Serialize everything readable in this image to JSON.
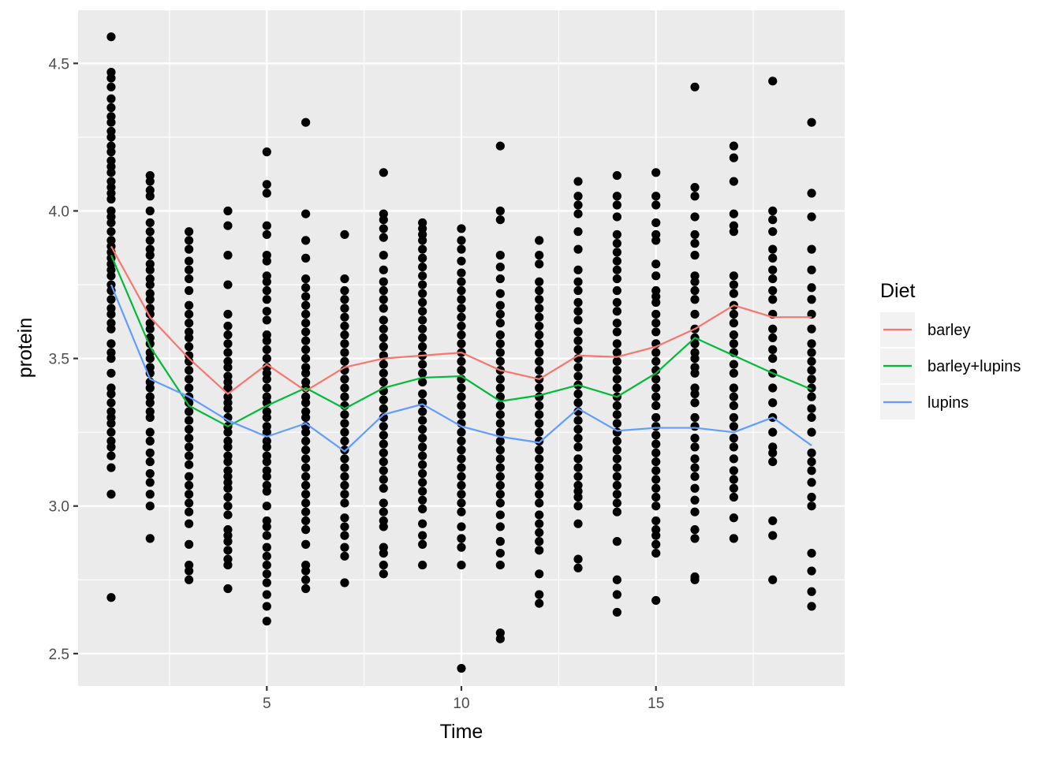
{
  "chart_data": {
    "type": "scatter",
    "title": "",
    "xlabel": "Time",
    "ylabel": "protein",
    "xlim": [
      0.15,
      19.85
    ],
    "ylim": [
      2.39,
      4.68
    ],
    "x_ticks": [
      5,
      10,
      15
    ],
    "y_ticks": [
      2.5,
      3.0,
      3.5,
      4.0,
      4.5
    ],
    "y_tick_labels": [
      "2.5",
      "3.0",
      "3.5",
      "4.0",
      "4.5"
    ],
    "grid": true,
    "background": "#ebebeb",
    "point_color": "#000000",
    "legend": {
      "title": "Diet",
      "position": "right",
      "entries": [
        "barley",
        "barley+lupins",
        "lupins"
      ]
    },
    "series": [
      {
        "name": "barley",
        "color": "#f8766d",
        "x": [
          1,
          2,
          3,
          4,
          5,
          6,
          7,
          8,
          9,
          10,
          11,
          12,
          13,
          14,
          15,
          16,
          17,
          18,
          19
        ],
        "values": [
          3.88,
          3.64,
          3.5,
          3.38,
          3.48,
          3.39,
          3.47,
          3.5,
          3.51,
          3.52,
          3.46,
          3.43,
          3.51,
          3.505,
          3.54,
          3.6,
          3.68,
          3.64,
          3.64
        ]
      },
      {
        "name": "barley+lupins",
        "color": "#00ba38",
        "x": [
          1,
          2,
          3,
          4,
          5,
          6,
          7,
          8,
          9,
          10,
          11,
          12,
          13,
          14,
          15,
          16,
          17,
          18,
          19
        ],
        "values": [
          3.85,
          3.54,
          3.34,
          3.27,
          3.34,
          3.4,
          3.33,
          3.4,
          3.435,
          3.44,
          3.355,
          3.375,
          3.41,
          3.37,
          3.45,
          3.57,
          3.51,
          3.45,
          3.395
        ]
      },
      {
        "name": "lupins",
        "color": "#619cff",
        "x": [
          1,
          2,
          3,
          4,
          5,
          6,
          7,
          8,
          9,
          10,
          11,
          12,
          13,
          14,
          15,
          16,
          17,
          18,
          19
        ],
        "values": [
          3.75,
          3.43,
          3.37,
          3.29,
          3.235,
          3.28,
          3.185,
          3.31,
          3.345,
          3.27,
          3.235,
          3.215,
          3.33,
          3.255,
          3.265,
          3.265,
          3.25,
          3.3,
          3.205
        ]
      }
    ],
    "points": [
      {
        "x": 1,
        "y": [
          4.59,
          4.47,
          4.45,
          4.42,
          4.38,
          4.35,
          4.32,
          4.3,
          4.27,
          4.25,
          4.22,
          4.2,
          4.17,
          4.15,
          4.13,
          4.1,
          4.08,
          4.06,
          4.04,
          4.0,
          3.98,
          3.96,
          3.93,
          3.9,
          3.88,
          3.86,
          3.84,
          3.82,
          3.8,
          3.78,
          3.75,
          3.73,
          3.7,
          3.67,
          3.65,
          3.62,
          3.6,
          3.55,
          3.52,
          3.5,
          3.45,
          3.4,
          3.38,
          3.35,
          3.32,
          3.3,
          3.28,
          3.25,
          3.22,
          3.2,
          3.17,
          3.13,
          3.04,
          2.69
        ]
      },
      {
        "x": 2,
        "y": [
          4.12,
          4.1,
          4.07,
          4.05,
          4.0,
          3.96,
          3.93,
          3.9,
          3.87,
          3.85,
          3.82,
          3.8,
          3.77,
          3.75,
          3.72,
          3.7,
          3.67,
          3.65,
          3.62,
          3.6,
          3.57,
          3.55,
          3.52,
          3.5,
          3.47,
          3.45,
          3.42,
          3.4,
          3.37,
          3.35,
          3.32,
          3.3,
          3.25,
          3.22,
          3.18,
          3.15,
          3.11,
          3.08,
          3.04,
          3.0,
          2.89
        ]
      },
      {
        "x": 3,
        "y": [
          3.93,
          3.9,
          3.87,
          3.83,
          3.8,
          3.77,
          3.73,
          3.68,
          3.65,
          3.62,
          3.59,
          3.57,
          3.54,
          3.51,
          3.49,
          3.46,
          3.43,
          3.4,
          3.37,
          3.35,
          3.32,
          3.29,
          3.26,
          3.23,
          3.2,
          3.17,
          3.14,
          3.1,
          3.07,
          3.04,
          3.01,
          2.98,
          2.94,
          2.87,
          2.8,
          2.78,
          2.75
        ]
      },
      {
        "x": 4,
        "y": [
          4.0,
          3.95,
          3.85,
          3.75,
          3.65,
          3.61,
          3.58,
          3.55,
          3.52,
          3.49,
          3.47,
          3.44,
          3.42,
          3.4,
          3.37,
          3.35,
          3.33,
          3.3,
          3.27,
          3.25,
          3.22,
          3.2,
          3.17,
          3.15,
          3.12,
          3.1,
          3.08,
          3.06,
          3.03,
          3.0,
          2.97,
          2.92,
          2.9,
          2.88,
          2.85,
          2.82,
          2.8,
          2.72
        ]
      },
      {
        "x": 5,
        "y": [
          4.2,
          4.09,
          4.06,
          3.95,
          3.92,
          3.85,
          3.83,
          3.78,
          3.76,
          3.73,
          3.7,
          3.66,
          3.63,
          3.58,
          3.56,
          3.53,
          3.5,
          3.47,
          3.45,
          3.43,
          3.4,
          3.37,
          3.35,
          3.32,
          3.3,
          3.27,
          3.25,
          3.22,
          3.2,
          3.17,
          3.15,
          3.12,
          3.1,
          3.07,
          3.05,
          3.0,
          2.95,
          2.93,
          2.9,
          2.86,
          2.83,
          2.8,
          2.77,
          2.74,
          2.7,
          2.66,
          2.61
        ]
      },
      {
        "x": 6,
        "y": [
          4.3,
          3.99,
          3.9,
          3.84,
          3.77,
          3.74,
          3.71,
          3.68,
          3.65,
          3.62,
          3.59,
          3.56,
          3.53,
          3.5,
          3.47,
          3.45,
          3.42,
          3.4,
          3.37,
          3.35,
          3.32,
          3.3,
          3.27,
          3.25,
          3.22,
          3.19,
          3.16,
          3.13,
          3.1,
          3.07,
          3.04,
          3.01,
          2.98,
          2.95,
          2.92,
          2.87,
          2.8,
          2.78,
          2.75,
          2.72
        ]
      },
      {
        "x": 7,
        "y": [
          3.92,
          3.77,
          3.73,
          3.7,
          3.67,
          3.64,
          3.61,
          3.58,
          3.55,
          3.52,
          3.49,
          3.46,
          3.43,
          3.4,
          3.37,
          3.34,
          3.31,
          3.28,
          3.25,
          3.22,
          3.19,
          3.16,
          3.13,
          3.1,
          3.07,
          3.04,
          3.01,
          2.96,
          2.93,
          2.9,
          2.86,
          2.83,
          2.74
        ]
      },
      {
        "x": 8,
        "y": [
          4.13,
          3.99,
          3.97,
          3.94,
          3.91,
          3.85,
          3.8,
          3.76,
          3.73,
          3.7,
          3.67,
          3.63,
          3.6,
          3.57,
          3.54,
          3.51,
          3.48,
          3.45,
          3.42,
          3.39,
          3.36,
          3.33,
          3.3,
          3.27,
          3.24,
          3.21,
          3.18,
          3.15,
          3.12,
          3.09,
          3.06,
          3.01,
          2.98,
          2.95,
          2.93,
          2.86,
          2.84,
          2.8,
          2.77
        ]
      },
      {
        "x": 9,
        "y": [
          3.96,
          3.94,
          3.92,
          3.9,
          3.87,
          3.84,
          3.81,
          3.78,
          3.75,
          3.72,
          3.69,
          3.66,
          3.63,
          3.6,
          3.57,
          3.54,
          3.51,
          3.48,
          3.45,
          3.42,
          3.38,
          3.35,
          3.32,
          3.29,
          3.26,
          3.23,
          3.2,
          3.17,
          3.14,
          3.11,
          3.08,
          3.05,
          3.02,
          2.99,
          2.94,
          2.9,
          2.87,
          2.8
        ]
      },
      {
        "x": 10,
        "y": [
          3.94,
          3.9,
          3.87,
          3.83,
          3.79,
          3.76,
          3.73,
          3.7,
          3.67,
          3.64,
          3.61,
          3.58,
          3.55,
          3.52,
          3.49,
          3.46,
          3.43,
          3.4,
          3.37,
          3.34,
          3.31,
          3.28,
          3.25,
          3.22,
          3.19,
          3.16,
          3.13,
          3.1,
          3.07,
          3.04,
          3.01,
          2.98,
          2.93,
          2.89,
          2.86,
          2.8,
          2.45
        ]
      },
      {
        "x": 11,
        "y": [
          4.22,
          4.0,
          3.97,
          3.85,
          3.81,
          3.77,
          3.72,
          3.68,
          3.65,
          3.62,
          3.58,
          3.55,
          3.52,
          3.49,
          3.46,
          3.43,
          3.4,
          3.37,
          3.34,
          3.31,
          3.28,
          3.25,
          3.22,
          3.19,
          3.16,
          3.13,
          3.1,
          3.07,
          3.04,
          3.01,
          2.97,
          2.93,
          2.88,
          2.84,
          2.8,
          2.57,
          2.55
        ]
      },
      {
        "x": 12,
        "y": [
          3.9,
          3.85,
          3.82,
          3.76,
          3.73,
          3.7,
          3.67,
          3.64,
          3.61,
          3.58,
          3.55,
          3.52,
          3.49,
          3.46,
          3.43,
          3.4,
          3.37,
          3.34,
          3.31,
          3.28,
          3.25,
          3.22,
          3.19,
          3.16,
          3.13,
          3.1,
          3.07,
          3.04,
          3.01,
          2.97,
          2.94,
          2.91,
          2.88,
          2.85,
          2.77,
          2.7,
          2.67
        ]
      },
      {
        "x": 13,
        "y": [
          4.1,
          4.05,
          4.02,
          3.99,
          3.93,
          3.87,
          3.8,
          3.76,
          3.73,
          3.69,
          3.66,
          3.63,
          3.59,
          3.56,
          3.53,
          3.5,
          3.47,
          3.44,
          3.41,
          3.38,
          3.35,
          3.32,
          3.29,
          3.26,
          3.23,
          3.2,
          3.16,
          3.13,
          3.1,
          3.07,
          3.05,
          3.03,
          3.0,
          2.94,
          2.82,
          2.79
        ]
      },
      {
        "x": 14,
        "y": [
          4.12,
          4.05,
          4.02,
          3.98,
          3.92,
          3.89,
          3.86,
          3.83,
          3.8,
          3.77,
          3.73,
          3.69,
          3.66,
          3.62,
          3.59,
          3.55,
          3.52,
          3.49,
          3.46,
          3.43,
          3.4,
          3.37,
          3.34,
          3.31,
          3.28,
          3.25,
          3.22,
          3.19,
          3.16,
          3.13,
          3.1,
          3.07,
          3.04,
          3.01,
          2.98,
          2.88,
          2.75,
          2.7,
          2.64
        ]
      },
      {
        "x": 15,
        "y": [
          4.13,
          4.05,
          4.02,
          3.96,
          3.92,
          3.9,
          3.82,
          3.78,
          3.73,
          3.71,
          3.69,
          3.65,
          3.62,
          3.59,
          3.55,
          3.52,
          3.49,
          3.46,
          3.43,
          3.4,
          3.37,
          3.34,
          3.3,
          3.27,
          3.24,
          3.21,
          3.18,
          3.15,
          3.12,
          3.09,
          3.06,
          3.03,
          3.0,
          2.95,
          2.92,
          2.9,
          2.87,
          2.84,
          2.68
        ]
      },
      {
        "x": 16,
        "y": [
          4.42,
          4.08,
          4.05,
          3.98,
          3.92,
          3.89,
          3.85,
          3.78,
          3.76,
          3.73,
          3.7,
          3.65,
          3.6,
          3.57,
          3.55,
          3.52,
          3.5,
          3.47,
          3.45,
          3.4,
          3.38,
          3.35,
          3.3,
          3.27,
          3.23,
          3.2,
          3.16,
          3.13,
          3.1,
          3.06,
          3.02,
          2.98,
          2.92,
          2.89,
          2.76,
          2.75
        ]
      },
      {
        "x": 17,
        "y": [
          4.22,
          4.18,
          4.1,
          3.99,
          3.95,
          3.93,
          3.78,
          3.75,
          3.72,
          3.68,
          3.65,
          3.62,
          3.58,
          3.55,
          3.52,
          3.48,
          3.45,
          3.4,
          3.37,
          3.34,
          3.3,
          3.27,
          3.23,
          3.2,
          3.16,
          3.12,
          3.09,
          3.06,
          3.03,
          2.96,
          2.89
        ]
      },
      {
        "x": 18,
        "y": [
          4.44,
          4.0,
          3.97,
          3.93,
          3.87,
          3.84,
          3.8,
          3.77,
          3.73,
          3.7,
          3.65,
          3.6,
          3.57,
          3.53,
          3.5,
          3.45,
          3.4,
          3.35,
          3.3,
          3.25,
          3.2,
          3.18,
          3.15,
          2.95,
          2.9,
          2.75
        ]
      },
      {
        "x": 19,
        "y": [
          4.3,
          4.06,
          3.98,
          3.87,
          3.8,
          3.74,
          3.7,
          3.65,
          3.6,
          3.55,
          3.52,
          3.49,
          3.46,
          3.43,
          3.4,
          3.37,
          3.33,
          3.3,
          3.25,
          3.18,
          3.15,
          3.12,
          3.08,
          3.03,
          3.0,
          2.84,
          2.78,
          2.71,
          2.66
        ]
      }
    ]
  }
}
